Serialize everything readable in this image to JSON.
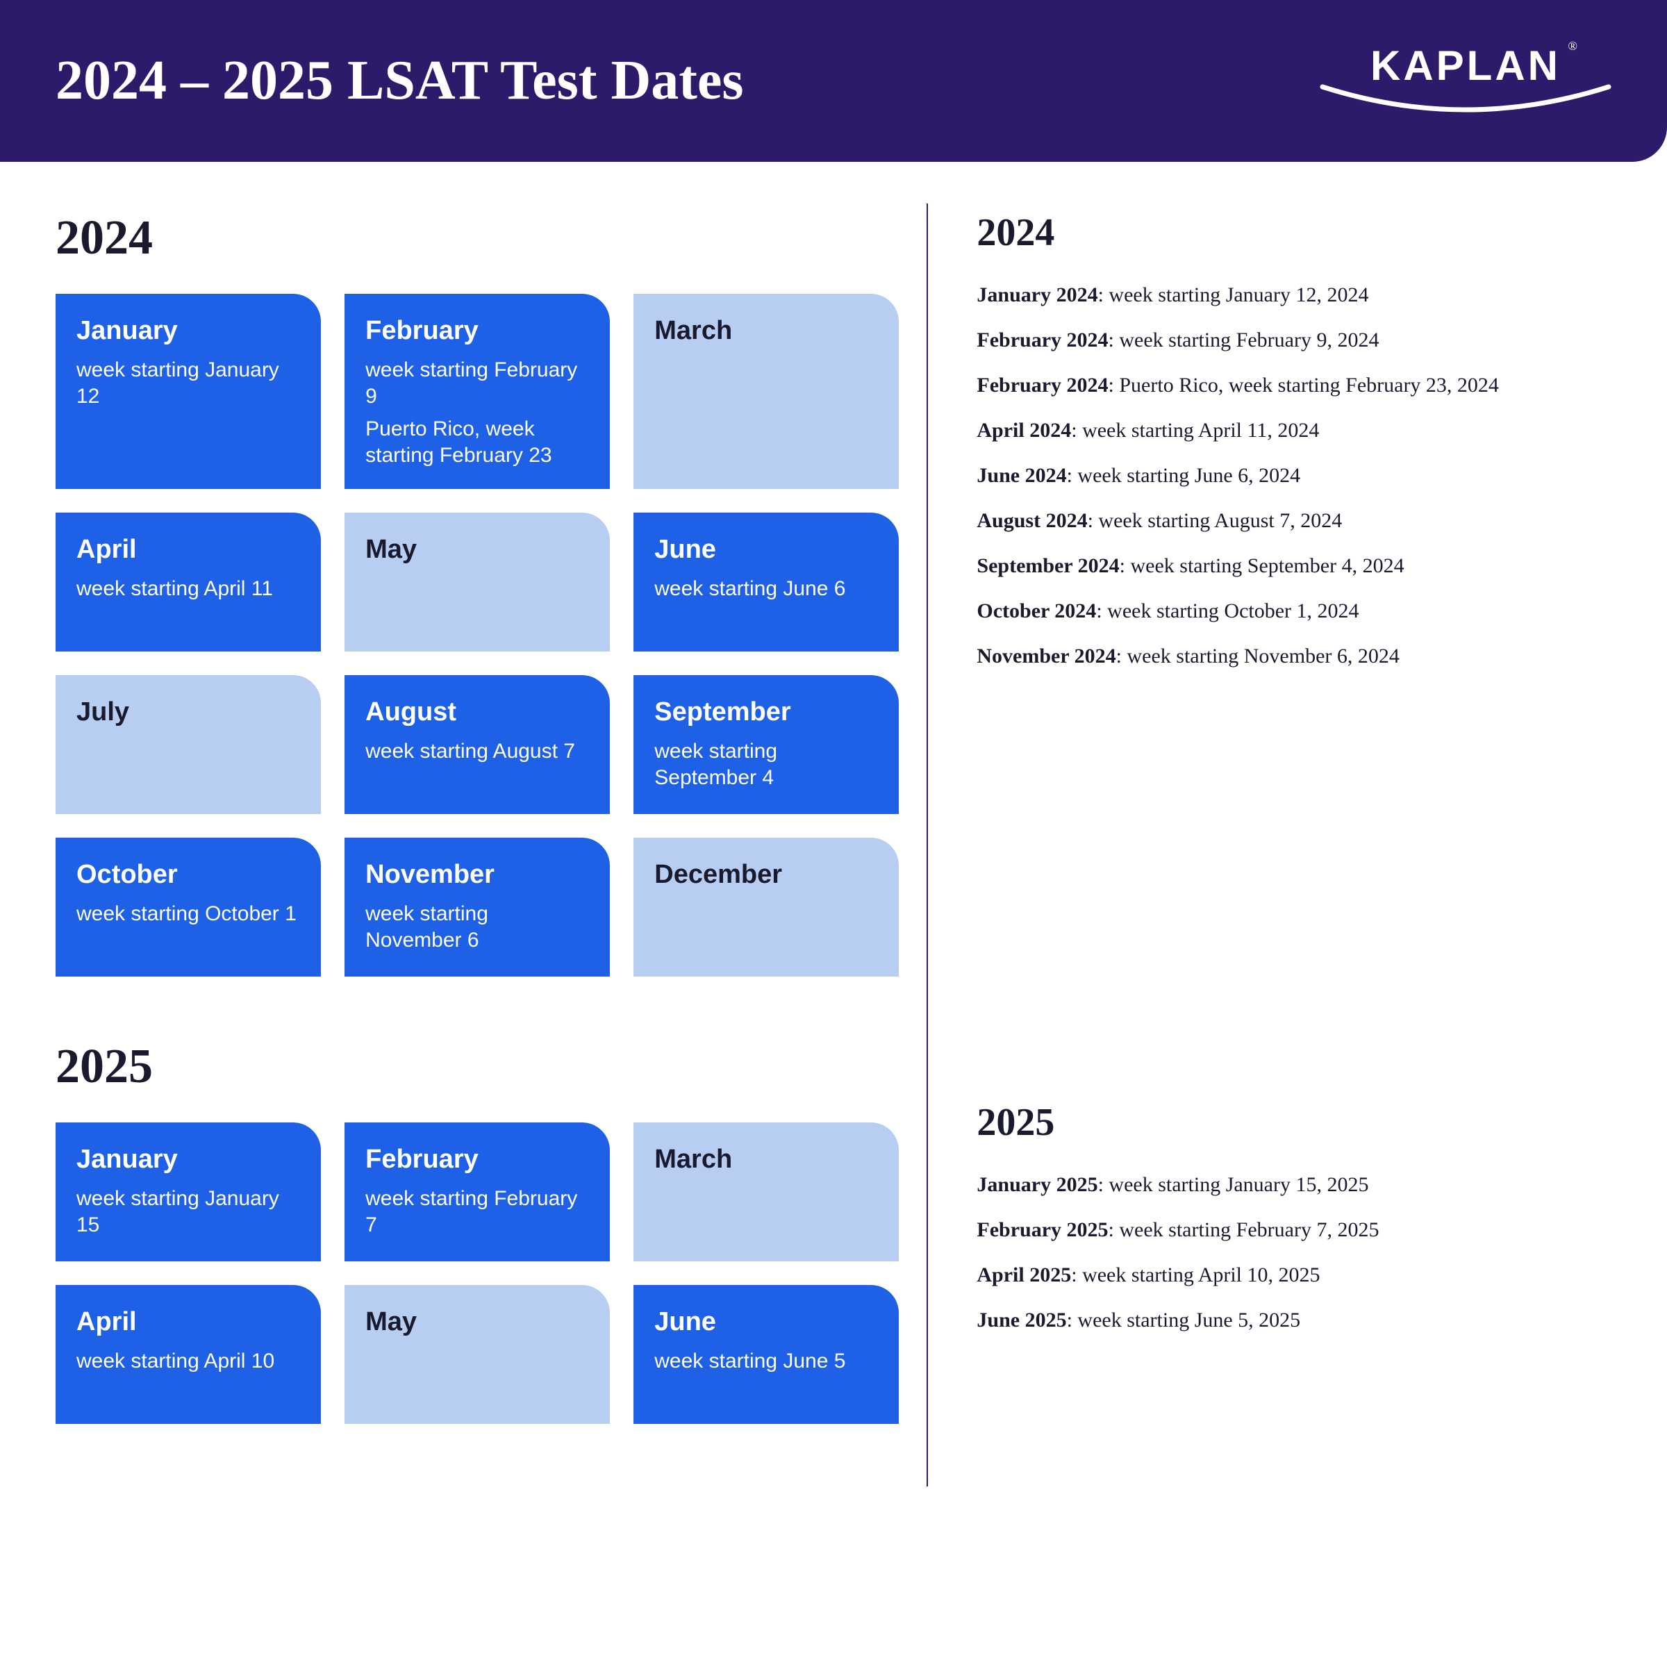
{
  "header": {
    "title": "2024 – 2025 LSAT Test Dates",
    "logo_text": "KAPLAN",
    "logo_reg": "®"
  },
  "colors": {
    "header_bg": "#2e1a6b",
    "card_active_bg": "#1f61e6",
    "card_inactive_bg": "#b7cdf2",
    "text_dark": "#1a1a2e",
    "white": "#ffffff"
  },
  "left": {
    "year_2024": "2024",
    "year_2025": "2025",
    "cards_2024": [
      {
        "month": "January",
        "active": true,
        "details": [
          "week starting January 12"
        ]
      },
      {
        "month": "February",
        "active": true,
        "details": [
          "week starting February 9",
          "Puerto Rico, week starting February 23"
        ]
      },
      {
        "month": "March",
        "active": false,
        "details": []
      },
      {
        "month": "April",
        "active": true,
        "details": [
          "week starting April 11"
        ]
      },
      {
        "month": "May",
        "active": false,
        "details": []
      },
      {
        "month": "June",
        "active": true,
        "details": [
          "week starting June 6"
        ]
      },
      {
        "month": "July",
        "active": false,
        "details": []
      },
      {
        "month": "August",
        "active": true,
        "details": [
          "week starting August 7"
        ]
      },
      {
        "month": "September",
        "active": true,
        "details": [
          "week starting September 4"
        ]
      },
      {
        "month": "October",
        "active": true,
        "details": [
          "week starting October 1"
        ]
      },
      {
        "month": "November",
        "active": true,
        "details": [
          "week starting November 6"
        ]
      },
      {
        "month": "December",
        "active": false,
        "details": []
      }
    ],
    "cards_2025": [
      {
        "month": "January",
        "active": true,
        "details": [
          "week starting January 15"
        ]
      },
      {
        "month": "February",
        "active": true,
        "details": [
          "week starting February 7"
        ]
      },
      {
        "month": "March",
        "active": false,
        "details": []
      },
      {
        "month": "April",
        "active": true,
        "details": [
          "week starting April 10"
        ]
      },
      {
        "month": "May",
        "active": false,
        "details": []
      },
      {
        "month": "June",
        "active": true,
        "details": [
          "week starting June 5"
        ]
      }
    ]
  },
  "right": {
    "year_2024": "2024",
    "year_2025": "2025",
    "list_2024": [
      {
        "label": "January 2024",
        "text": ": week starting January 12, 2024"
      },
      {
        "label": "February 2024",
        "text": ": week starting February 9, 2024"
      },
      {
        "label": "February 2024",
        "text": ": Puerto Rico, week starting February 23, 2024"
      },
      {
        "label": "April 2024",
        "text": ": week starting April 11, 2024"
      },
      {
        "label": "June 2024",
        "text": ": week starting June 6, 2024"
      },
      {
        "label": "August 2024",
        "text": ": week starting August 7, 2024"
      },
      {
        "label": "September 2024",
        "text": ": week starting September 4, 2024"
      },
      {
        "label": "October 2024",
        "text": ": week starting October 1, 2024"
      },
      {
        "label": "November 2024",
        "text": ": week starting November 6, 2024"
      }
    ],
    "list_2025": [
      {
        "label": "January 2025",
        "text": ": week starting January 15, 2025"
      },
      {
        "label": "February 2025",
        "text": ": week starting February 7, 2025"
      },
      {
        "label": "April 2025",
        "text": ": week starting April 10, 2025"
      },
      {
        "label": "June 2025",
        "text": ": week starting June 5, 2025"
      }
    ]
  }
}
